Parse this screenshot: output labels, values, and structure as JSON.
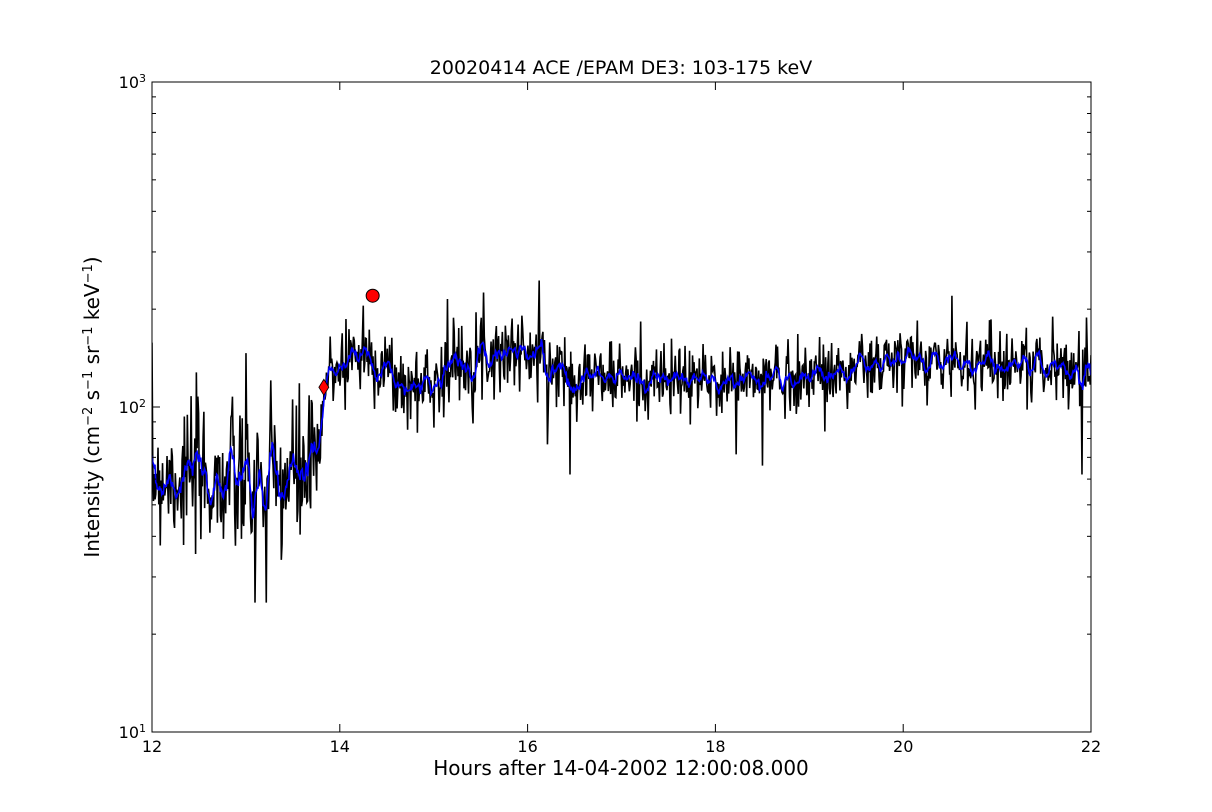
{
  "chart_data": {
    "type": "line",
    "title": "20020414 ACE /EPAM DE3: 103-175 keV",
    "xlabel": "Hours after 14-04-2002 12:00:08.000",
    "ylabel": {
      "prefix": "Intensity (cm",
      "parts": [
        {
          "t": "−2",
          "sup": true
        },
        {
          "t": " s",
          "sup": false
        },
        {
          "t": "−1",
          "sup": true
        },
        {
          "t": " sr",
          "sup": false
        },
        {
          "t": "−1",
          "sup": true
        },
        {
          "t": " keV",
          "sup": false
        },
        {
          "t": "−1",
          "sup": true
        },
        {
          "t": ")",
          "sup": false
        }
      ]
    },
    "xlim": [
      12,
      22
    ],
    "ylim": [
      10,
      1000
    ],
    "yscale": "log",
    "x_ticks": [
      {
        "v": 12,
        "label": "12"
      },
      {
        "v": 14,
        "label": "14"
      },
      {
        "v": 16,
        "label": "16"
      },
      {
        "v": 18,
        "label": "18"
      },
      {
        "v": 20,
        "label": "20"
      },
      {
        "v": 22,
        "label": "22"
      }
    ],
    "y_ticks": [
      {
        "v": 10,
        "base": "10",
        "exp": "1"
      },
      {
        "v": 100,
        "base": "10",
        "exp": "2"
      },
      {
        "v": 1000,
        "base": "10",
        "exp": "3"
      }
    ],
    "grid": false,
    "series_profile": [
      {
        "x": 12.0,
        "y": 62,
        "noise": 0.24
      },
      {
        "x": 12.5,
        "y": 60,
        "noise": 0.26
      },
      {
        "x": 13.0,
        "y": 58,
        "noise": 0.28
      },
      {
        "x": 13.3,
        "y": 58,
        "noise": 0.3
      },
      {
        "x": 13.6,
        "y": 62,
        "noise": 0.28
      },
      {
        "x": 13.78,
        "y": 68,
        "noise": 0.22
      },
      {
        "x": 13.86,
        "y": 125,
        "noise": 0.14
      },
      {
        "x": 14.1,
        "y": 148,
        "noise": 0.14
      },
      {
        "x": 14.4,
        "y": 140,
        "noise": 0.16
      },
      {
        "x": 14.7,
        "y": 112,
        "noise": 0.14
      },
      {
        "x": 15.0,
        "y": 122,
        "noise": 0.14
      },
      {
        "x": 15.4,
        "y": 145,
        "noise": 0.14
      },
      {
        "x": 15.9,
        "y": 150,
        "noise": 0.14
      },
      {
        "x": 16.4,
        "y": 128,
        "noise": 0.13
      },
      {
        "x": 17.0,
        "y": 122,
        "noise": 0.13
      },
      {
        "x": 18.0,
        "y": 120,
        "noise": 0.13
      },
      {
        "x": 19.0,
        "y": 125,
        "noise": 0.13
      },
      {
        "x": 20.0,
        "y": 138,
        "noise": 0.13
      },
      {
        "x": 21.0,
        "y": 138,
        "noise": 0.13
      },
      {
        "x": 22.0,
        "y": 130,
        "noise": 0.13
      }
    ],
    "series": [
      {
        "color": "#000000",
        "kind": "raw",
        "count": 1250,
        "seed": 7
      },
      {
        "color": "#0000ff",
        "kind": "smoothed",
        "window": 4
      }
    ],
    "markers": [
      {
        "shape": "diamond",
        "x": 13.83,
        "y": 115,
        "color": "#ff0000"
      },
      {
        "shape": "circle",
        "x": 14.35,
        "y": 220,
        "color": "#ff0000"
      }
    ],
    "spikes": [
      {
        "x": 13.1,
        "y": 25
      },
      {
        "x": 13.22,
        "y": 25
      },
      {
        "x": 14.06,
        "y": 98
      },
      {
        "x": 14.25,
        "y": 205
      },
      {
        "x": 15.15,
        "y": 215
      },
      {
        "x": 16.12,
        "y": 245
      },
      {
        "x": 16.45,
        "y": 62
      },
      {
        "x": 18.5,
        "y": 66
      },
      {
        "x": 20.52,
        "y": 220
      },
      {
        "x": 21.9,
        "y": 62
      }
    ]
  }
}
